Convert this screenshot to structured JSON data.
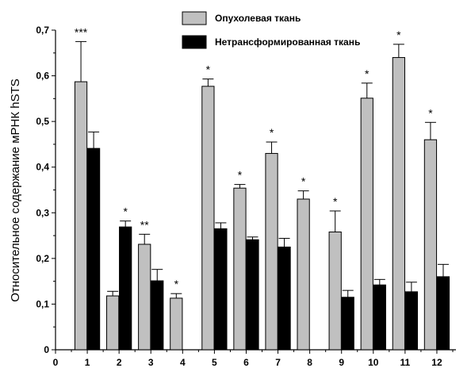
{
  "chart_data": {
    "type": "bar",
    "title": "",
    "xlabel": "",
    "ylabel": "Относительное содержание мРНК hSTS",
    "categories": [
      "1",
      "2",
      "3",
      "4",
      "5",
      "6",
      "7",
      "8",
      "9",
      "10",
      "11",
      "12"
    ],
    "x_ticks": [
      "0",
      "1",
      "2",
      "3",
      "4",
      "5",
      "6",
      "7",
      "8",
      "9",
      "10",
      "11",
      "12"
    ],
    "xlim": [
      0,
      12.6
    ],
    "ylim": [
      0,
      0.7
    ],
    "y_ticks": [
      "0",
      "0,1",
      "0,2",
      "0,3",
      "0,4",
      "0,5",
      "0,6",
      "0,7"
    ],
    "grid": false,
    "legend_position": "top-center",
    "series": [
      {
        "name": "Опухолевая ткань",
        "color": "#c0c0c0",
        "values": [
          0.587,
          0.118,
          0.231,
          0.113,
          0.577,
          0.354,
          0.43,
          0.33,
          0.258,
          0.551,
          0.64,
          0.46
        ],
        "errors": [
          0.088,
          0.01,
          0.022,
          0.01,
          0.016,
          0.008,
          0.025,
          0.018,
          0.046,
          0.033,
          0.029,
          0.038
        ]
      },
      {
        "name": "Нетрансформированная ткань",
        "color": "#000000",
        "values": [
          0.441,
          0.269,
          0.151,
          null,
          0.265,
          0.241,
          0.225,
          null,
          0.115,
          0.142,
          0.127,
          0.16
        ],
        "errors": [
          0.036,
          0.013,
          0.025,
          null,
          0.013,
          0.006,
          0.019,
          null,
          0.015,
          0.012,
          0.021,
          0.027
        ]
      }
    ],
    "annotations": [
      "***",
      "*",
      "**",
      "*",
      "*",
      "*",
      "*",
      "*",
      "*",
      "*",
      "*",
      "*"
    ]
  }
}
